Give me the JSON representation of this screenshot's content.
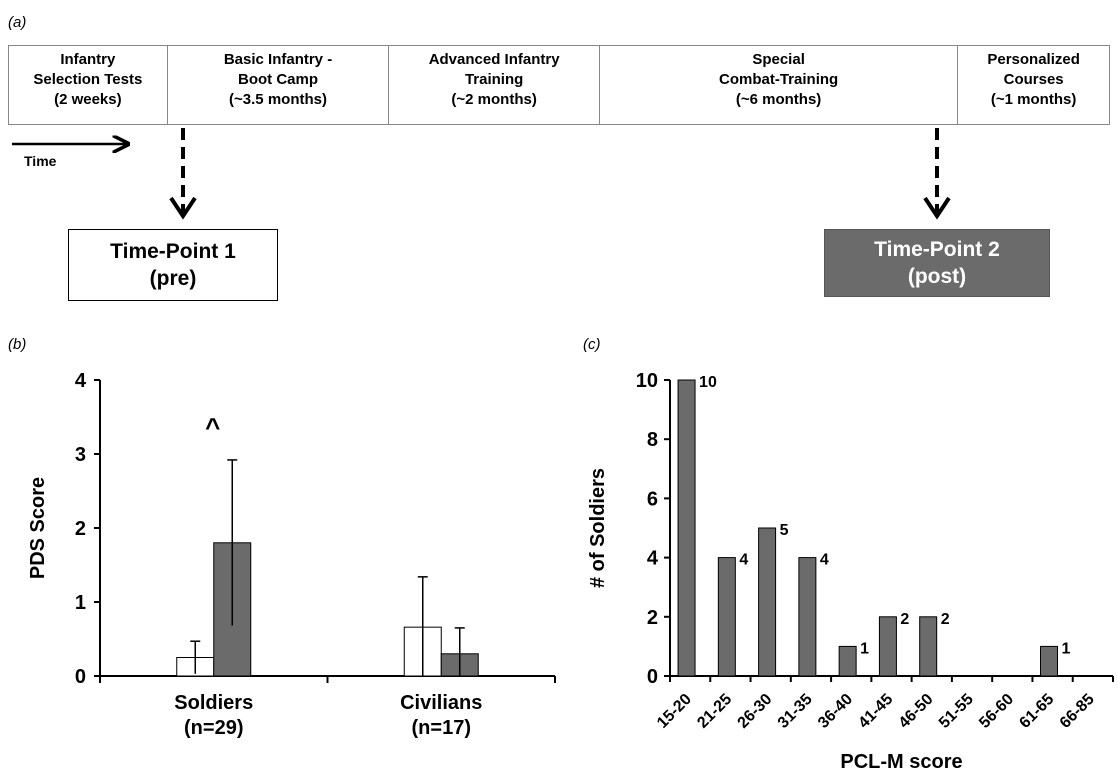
{
  "panel_a": {
    "label": "(a)",
    "stages": [
      {
        "label": "Infantry\nSelection Tests\n(2 weeks)"
      },
      {
        "label": "Basic Infantry -\nBoot Camp\n(~3.5 months)"
      },
      {
        "label": "Advanced Infantry\nTraining\n(~2 months)"
      },
      {
        "label": "Special\nCombat-Training\n(~6 months)"
      },
      {
        "label": "Personalized\nCourses\n(~1 months)"
      }
    ],
    "time_label": "Time",
    "timepoint1": "Time-Point 1\n(pre)",
    "timepoint2": "Time-Point 2\n(post)"
  },
  "panel_b": {
    "label": "(b)"
  },
  "panel_c": {
    "label": "(c)"
  },
  "colors": {
    "post": "#6b6b6b",
    "pre": "#ffffff",
    "axis": "#000000"
  },
  "chart_data": [
    {
      "type": "bar",
      "ylabel": "PDS Score",
      "ylim": [
        0,
        4
      ],
      "yticks": [
        0,
        1,
        2,
        3,
        4
      ],
      "categories": [
        "Soldiers\n(n=29)",
        "Civilians\n(n=17)"
      ],
      "series": [
        {
          "values": [
            0.25,
            0.66
          ],
          "err": [
            0.22,
            0.68
          ],
          "color": "#ffffff"
        },
        {
          "values": [
            1.8,
            0.3
          ],
          "err": [
            1.12,
            0.35
          ],
          "color": "#6b6b6b"
        }
      ],
      "annotations": [
        {
          "text": "^",
          "category": 0
        }
      ]
    },
    {
      "type": "bar",
      "xlabel": "PCL-M score",
      "ylabel": "# of Soldiers",
      "ylim": [
        0,
        10
      ],
      "yticks": [
        0,
        2,
        4,
        6,
        8,
        10
      ],
      "categories": [
        "15-20",
        "21-25",
        "26-30",
        "31-35",
        "36-40",
        "41-45",
        "46-50",
        "51-55",
        "56-60",
        "61-65",
        "66-85"
      ],
      "values": [
        10,
        4,
        5,
        4,
        1,
        2,
        2,
        0,
        0,
        1,
        0
      ],
      "data_labels": [
        "10",
        "4",
        "5",
        "4",
        "1",
        "2",
        "2",
        "",
        "",
        "1",
        ""
      ]
    }
  ]
}
